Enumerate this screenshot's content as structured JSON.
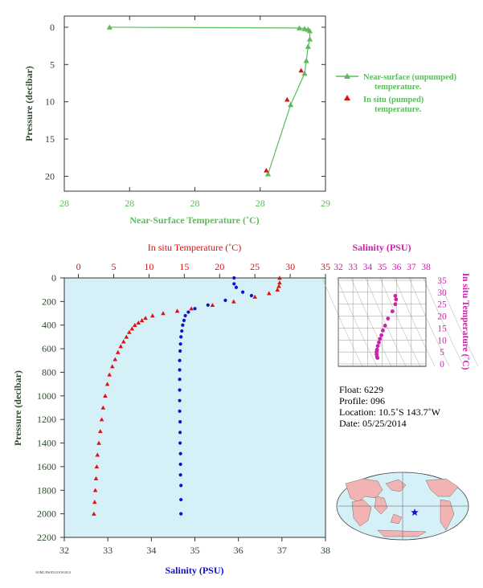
{
  "colors": {
    "green": "#5dbb5d",
    "red": "#dd1111",
    "blue": "#1111cc",
    "magenta": "#cc22aa",
    "axis_text_dark": "#2c4a2c",
    "plot_bg": "#d6f0f8",
    "land": "#f2b3b3",
    "ocean": "#d6f0f8"
  },
  "top_chart": {
    "xlabel": "Near-Surface Temperature (˚C)",
    "ylabel": "Pressure (decibar)",
    "xticks": [
      "28",
      "28",
      "28",
      "28",
      "29"
    ],
    "yticks": [
      "0",
      "5",
      "10",
      "15",
      "20"
    ],
    "legend": {
      "line1_a": "Near-surface (unpumped)",
      "line1_b": "temperature.",
      "line2_a": "In situ (pumped)",
      "line2_b": "temperature."
    }
  },
  "main_chart": {
    "top_xlabel": "In situ Temperature (˚C)",
    "top_xticks": [
      "0",
      "5",
      "10",
      "15",
      "20",
      "25",
      "30",
      "35"
    ],
    "bottom_xlabel": "Salinity (PSU)",
    "bottom_xticks": [
      "32",
      "33",
      "34",
      "35",
      "36",
      "37",
      "38"
    ],
    "ylabel": "Pressure (decibar)",
    "yticks": [
      "0",
      "200",
      "400",
      "600",
      "800",
      "1000",
      "1200",
      "1400",
      "1600",
      "1800",
      "2000",
      "2200"
    ],
    "footer": "AOML/PhOD/GOOS/2014"
  },
  "ts_chart": {
    "title": "Salinity (PSU)",
    "xticks": [
      "32",
      "33",
      "34",
      "35",
      "36",
      "37",
      "38"
    ],
    "ylabel": "In situ Temperature (˚C)",
    "yticks": [
      "0",
      "5",
      "10",
      "15",
      "20",
      "25",
      "30",
      "35"
    ]
  },
  "info": {
    "float": "Float:  6229",
    "profile": "Profile:  096",
    "location": "Location:  10.5˚S  143.7˚W",
    "date": "Date:  05/25/2014"
  },
  "map": {
    "marker_icon": "star-icon"
  },
  "chart_data": [
    {
      "type": "line",
      "xlabel": "Near-Surface Temperature (˚C)",
      "ylabel": "Pressure (decibar)",
      "xlim": [
        27.5,
        29.0
      ],
      "ylim": [
        22,
        -1.5
      ],
      "series": [
        {
          "name": "Near-surface (unpumped) temperature.",
          "x": [
            27.76,
            28.85,
            28.88,
            28.9,
            28.91,
            28.91,
            28.9,
            28.89,
            28.88,
            28.8,
            28.67
          ],
          "y": [
            0.0,
            0.1,
            0.2,
            0.3,
            0.5,
            1.6,
            2.6,
            4.5,
            6.2,
            10.4,
            19.7
          ]
        },
        {
          "name": "In situ (pumped) temperature.",
          "type": "scatter",
          "x": [
            28.86,
            28.78,
            28.66
          ],
          "y": [
            5.8,
            9.7,
            19.2
          ]
        }
      ]
    },
    {
      "type": "scatter",
      "ylabel": "Pressure (decibar)",
      "ylim": [
        2200,
        0
      ],
      "series": [
        {
          "name": "In situ Temperature (˚C)",
          "axis": "top",
          "xlim": [
            -2,
            35
          ],
          "x": [
            28.5,
            28.5,
            28.4,
            28.2,
            27.0,
            25.0,
            22.0,
            19.0,
            16.0,
            14.0,
            12.0,
            10.5,
            9.5,
            9.0,
            8.5,
            8.0,
            7.6,
            7.2,
            6.8,
            6.4,
            6.0,
            5.6,
            5.2,
            4.8,
            4.4,
            4.1,
            3.8,
            3.5,
            3.3,
            3.1,
            2.9,
            2.7,
            2.6,
            2.5,
            2.4,
            2.3,
            2.2
          ],
          "y": [
            0,
            40,
            70,
            100,
            130,
            160,
            200,
            230,
            260,
            280,
            300,
            320,
            340,
            360,
            380,
            400,
            430,
            460,
            500,
            540,
            580,
            630,
            690,
            750,
            820,
            900,
            1000,
            1100,
            1200,
            1300,
            1400,
            1500,
            1600,
            1700,
            1800,
            1900,
            2000
          ]
        },
        {
          "name": "Salinity (PSU)",
          "axis": "bottom",
          "xlim": [
            32,
            38
          ],
          "x": [
            35.9,
            35.9,
            35.95,
            36.1,
            36.3,
            35.7,
            35.3,
            35.0,
            34.85,
            34.78,
            34.75,
            34.72,
            34.7,
            34.68,
            34.67,
            34.66,
            34.65,
            34.65,
            34.65,
            34.65,
            34.65,
            34.65,
            34.66,
            34.66,
            34.66,
            34.67,
            34.67,
            34.67,
            34.68,
            34.68,
            34.68
          ],
          "y": [
            0,
            50,
            80,
            120,
            150,
            190,
            230,
            260,
            290,
            320,
            360,
            400,
            450,
            500,
            560,
            620,
            700,
            780,
            860,
            950,
            1040,
            1130,
            1220,
            1310,
            1400,
            1490,
            1580,
            1670,
            1760,
            1880,
            2000
          ]
        }
      ]
    },
    {
      "type": "scatter",
      "title": "Salinity (PSU)",
      "ylabel": "In situ Temperature (˚C)",
      "xlim": [
        32,
        38
      ],
      "ylim": [
        -1,
        36
      ],
      "series": [
        {
          "name": "T-S profile",
          "x": [
            35.9,
            35.95,
            35.9,
            35.7,
            35.4,
            35.2,
            35.05,
            34.95,
            34.85,
            34.78,
            34.7,
            34.65,
            34.62,
            34.62,
            34.65,
            34.68
          ],
          "y": [
            28.5,
            27,
            25,
            22,
            19,
            16,
            14,
            12,
            10.5,
            9.0,
            7.5,
            6.0,
            5.0,
            4.0,
            3.0,
            2.5
          ]
        }
      ]
    }
  ]
}
